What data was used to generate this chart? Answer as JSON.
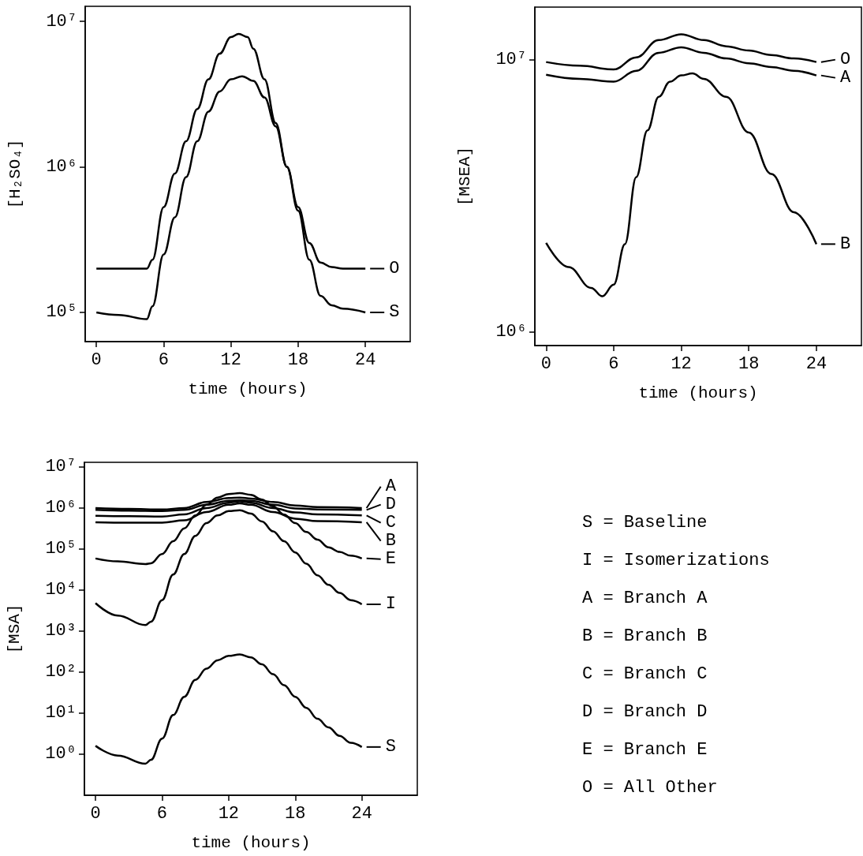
{
  "chart_data": [
    {
      "type": "line",
      "legend": "right",
      "xlabel": "time (hours)",
      "ylabel": "[H₂SO₄]",
      "log": "y",
      "xlim": [
        -1,
        28
      ],
      "xticks": [
        0,
        6,
        12,
        18,
        24
      ],
      "ylim": [
        63000,
        12700000
      ],
      "yticks": [
        {
          "value": 100000,
          "label": "10⁵"
        },
        {
          "value": 1000000,
          "label": "10⁶"
        },
        {
          "value": 10000000,
          "label": "10⁷"
        }
      ],
      "series": [
        {
          "name": "O",
          "color": "#000000",
          "x": [
            0,
            2,
            4.5,
            5,
            6,
            7,
            8,
            9,
            10,
            11,
            12,
            12.7,
            13.5,
            14,
            15,
            16,
            17,
            18,
            19,
            20,
            21,
            22,
            24
          ],
          "values": [
            200000,
            200000,
            200000,
            230000,
            530000,
            900000,
            1500000,
            2500000,
            4000000,
            6000000,
            7800000,
            8200000,
            7800000,
            6500000,
            4000000,
            2000000,
            1000000,
            530000,
            300000,
            220000,
            205000,
            200000,
            200000
          ]
        },
        {
          "name": "S",
          "color": "#000000",
          "x": [
            0,
            2,
            4.5,
            5,
            6,
            7,
            8,
            9,
            10,
            11,
            12,
            13,
            14,
            15,
            16,
            17,
            18,
            19,
            20,
            21,
            22,
            24
          ],
          "values": [
            100000,
            96000,
            90000,
            110000,
            250000,
            450000,
            850000,
            1500000,
            2400000,
            3300000,
            4000000,
            4200000,
            3900000,
            3000000,
            1900000,
            1000000,
            500000,
            230000,
            130000,
            112000,
            106000,
            100000
          ]
        }
      ]
    },
    {
      "type": "line",
      "legend": "right",
      "xlabel": "time (hours)",
      "ylabel": "[MSEA]",
      "log": "y",
      "xlim": [
        -1,
        28
      ],
      "xticks": [
        0,
        6,
        12,
        18,
        24
      ],
      "ylim": [
        890000,
        15600000
      ],
      "yticks": [
        {
          "value": 1000000,
          "label": "10⁶"
        },
        {
          "value": 10000000,
          "label": "10⁷"
        }
      ],
      "series": [
        {
          "name": "O",
          "color": "#000000",
          "x": [
            0,
            3,
            6,
            8,
            10,
            12,
            14,
            16,
            18,
            20,
            22,
            24
          ],
          "values": [
            9800000,
            9500000,
            9200000,
            10200000,
            11800000,
            12400000,
            11800000,
            11200000,
            10800000,
            10400000,
            10100000,
            9800000
          ]
        },
        {
          "name": "A",
          "color": "#000000",
          "x": [
            0,
            3,
            6,
            8,
            10,
            12,
            14,
            16,
            18,
            20,
            22,
            24
          ],
          "values": [
            8800000,
            8500000,
            8300000,
            9100000,
            10600000,
            11100000,
            10600000,
            10100000,
            9700000,
            9400000,
            9100000,
            8750000
          ]
        },
        {
          "name": "B",
          "color": "#000000",
          "x": [
            0,
            2,
            4,
            5,
            6,
            7,
            8,
            9,
            10,
            11,
            12,
            13,
            14,
            16,
            18,
            20,
            22,
            24
          ],
          "values": [
            2120000,
            1730000,
            1450000,
            1350000,
            1490000,
            2100000,
            3700000,
            5500000,
            7300000,
            8300000,
            8750000,
            8900000,
            8500000,
            7300000,
            5400000,
            3800000,
            2750000,
            2100000
          ]
        }
      ]
    },
    {
      "type": "line",
      "legend": "right",
      "xlabel": "time (hours)",
      "ylabel": "[MSA]",
      "log": "y",
      "xlim": [
        -1,
        29
      ],
      "xticks": [
        0,
        6,
        12,
        18,
        24
      ],
      "ylim": [
        0.1,
        13000000
      ],
      "yticks": [
        {
          "value": 1,
          "label": "10⁰"
        },
        {
          "value": 10,
          "label": "10¹"
        },
        {
          "value": 100,
          "label": "10²"
        },
        {
          "value": 1000,
          "label": "10³"
        },
        {
          "value": 10000,
          "label": "10⁴"
        },
        {
          "value": 100000,
          "label": "10⁵"
        },
        {
          "value": 1000000,
          "label": "10⁶"
        },
        {
          "value": 10000000,
          "label": "10⁷"
        }
      ],
      "series": [
        {
          "name": "A",
          "color": "#000000",
          "x": [
            0,
            3,
            6,
            8,
            10,
            12,
            13,
            14,
            16,
            18,
            20,
            24
          ],
          "values": [
            1000000,
            950000,
            920000,
            1000000,
            1400000,
            1750000,
            1800000,
            1700000,
            1400000,
            1150000,
            1050000,
            1000000
          ]
        },
        {
          "name": "D",
          "color": "#000000",
          "x": [
            0,
            3,
            6,
            8,
            10,
            12,
            13,
            14,
            16,
            18,
            20,
            24
          ],
          "values": [
            900000,
            860000,
            840000,
            900000,
            1200000,
            1500000,
            1550000,
            1500000,
            1200000,
            980000,
            920000,
            900000
          ]
        },
        {
          "name": "C",
          "color": "#000000",
          "x": [
            0,
            3,
            6,
            8,
            10,
            12,
            13,
            14,
            16,
            18,
            20,
            24
          ],
          "values": [
            650000,
            630000,
            620000,
            700000,
            1000000,
            1350000,
            1450000,
            1350000,
            1000000,
            780000,
            700000,
            660000
          ]
        },
        {
          "name": "B",
          "color": "#000000",
          "x": [
            0,
            3,
            6,
            8,
            10,
            12,
            13,
            14,
            16,
            18,
            20,
            24
          ],
          "values": [
            450000,
            440000,
            440000,
            500000,
            800000,
            1200000,
            1300000,
            1200000,
            800000,
            550000,
            480000,
            450000
          ]
        },
        {
          "name": "E",
          "color": "#000000",
          "x": [
            0,
            2,
            4.5,
            5,
            6,
            7,
            8,
            9,
            10,
            11,
            12,
            13,
            14,
            15,
            16,
            17,
            18,
            19,
            20,
            21,
            22,
            23,
            24
          ],
          "values": [
            59000,
            50000,
            43000,
            45000,
            76000,
            155000,
            320000,
            660000,
            1200000,
            1800000,
            2200000,
            2300000,
            2100000,
            1600000,
            1100000,
            690000,
            430000,
            260000,
            170000,
            110000,
            85000,
            69000,
            59000
          ]
        },
        {
          "name": "I",
          "color": "#000000",
          "x": [
            0,
            2,
            4.5,
            5,
            6,
            7,
            8,
            9,
            10,
            11,
            12,
            13,
            14,
            15,
            16,
            17,
            18,
            19,
            20,
            21,
            22,
            23,
            24
          ],
          "values": [
            4800,
            2400,
            1400,
            1700,
            5700,
            24000,
            76000,
            210000,
            430000,
            660000,
            840000,
            880000,
            730000,
            470000,
            270000,
            155000,
            83000,
            44000,
            23000,
            13500,
            8500,
            5700,
            4500
          ]
        },
        {
          "name": "S",
          "color": "#000000",
          "x": [
            0,
            2,
            4.5,
            5,
            6,
            7,
            8,
            9,
            10,
            11,
            12,
            13,
            14,
            15,
            16,
            17,
            18,
            19,
            20,
            21,
            22,
            23,
            24
          ],
          "values": [
            1.6,
            0.93,
            0.59,
            0.73,
            2.4,
            9,
            25,
            65,
            122,
            195,
            250,
            270,
            230,
            155,
            89,
            48,
            25,
            13.5,
            7.3,
            4.5,
            2.8,
            1.9,
            1.5
          ]
        }
      ]
    },
    {
      "type": "other",
      "annotations": [
        "S = Baseline",
        "I = Isomerizations",
        "A = Branch A",
        "B = Branch B",
        "C = Branch C",
        "D = Branch D",
        "E = Branch E",
        "O = All Other"
      ]
    }
  ]
}
